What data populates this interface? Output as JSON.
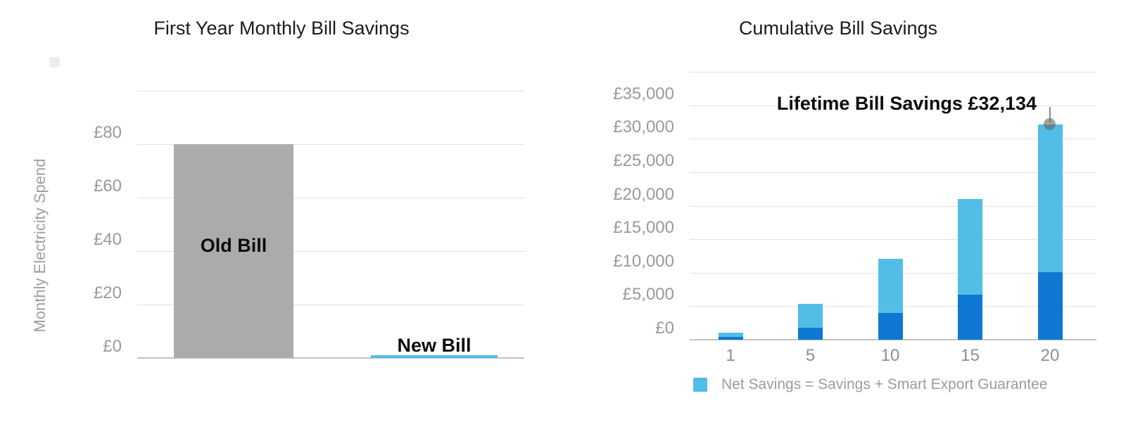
{
  "page": {
    "background": "#ffffff",
    "accent_light_blue": "#52bde6",
    "accent_dark_blue": "#0e78d2",
    "bar_gray": "#ababab"
  },
  "chart_data": [
    {
      "type": "bar",
      "title": "First Year Monthly Bill Savings",
      "xlabel": "",
      "ylabel": "Monthly Electricity Spend",
      "currency_prefix": "£",
      "ylim": [
        0,
        100
      ],
      "grid": "on",
      "grid_values": [
        0,
        20,
        40,
        60,
        80,
        100
      ],
      "yticks": [
        {
          "label": "£0",
          "value": 0
        },
        {
          "label": "£20",
          "value": 20
        },
        {
          "label": "£40",
          "value": 40
        },
        {
          "label": "£60",
          "value": 60
        },
        {
          "label": "£80",
          "value": 80
        }
      ],
      "categories": [
        "Old Bill",
        "New Bill"
      ],
      "values": [
        80,
        1
      ],
      "bars": [
        {
          "label": "Old Bill",
          "value": 80,
          "color": "#ababab",
          "label_position": "inside"
        },
        {
          "label": "New Bill",
          "value": 1,
          "color": "#52bde6",
          "label_position": "above"
        }
      ]
    },
    {
      "type": "bar",
      "stacked": true,
      "title": "Cumulative Bill Savings",
      "xlabel": "",
      "ylabel": "",
      "currency_prefix": "£",
      "ylim": [
        0,
        40000
      ],
      "grid": "on",
      "grid_values": [
        0,
        5000,
        10000,
        15000,
        20000,
        25000,
        30000,
        35000,
        40000
      ],
      "yticks": [
        {
          "label": "£0",
          "value": 0
        },
        {
          "label": "£5,000",
          "value": 5000
        },
        {
          "label": "£10,000",
          "value": 10000
        },
        {
          "label": "£15,000",
          "value": 15000
        },
        {
          "label": "£20,000",
          "value": 20000
        },
        {
          "label": "£25,000",
          "value": 25000
        },
        {
          "label": "£30,000",
          "value": 30000
        },
        {
          "label": "£35,000",
          "value": 35000
        }
      ],
      "categories": [
        "1",
        "5",
        "10",
        "15",
        "20"
      ],
      "series": [
        {
          "name": "Savings",
          "color": "#0e78d2",
          "values": [
            420,
            1800,
            4000,
            6700,
            10100
          ]
        },
        {
          "name": "Smart Export Guarantee",
          "color": "#52bde6",
          "values": [
            680,
            3600,
            8100,
            14300,
            22034
          ]
        }
      ],
      "totals": [
        1100,
        5400,
        12100,
        21000,
        32134
      ],
      "annotation": {
        "text": "Lifetime Bill Savings £32,134",
        "target_category": "20",
        "target_value": 32134
      },
      "legend": [
        {
          "label": "Net Savings = Savings + Smart Export Guarantee",
          "color": "#52bde6"
        }
      ],
      "legend_position": "bottom"
    }
  ]
}
